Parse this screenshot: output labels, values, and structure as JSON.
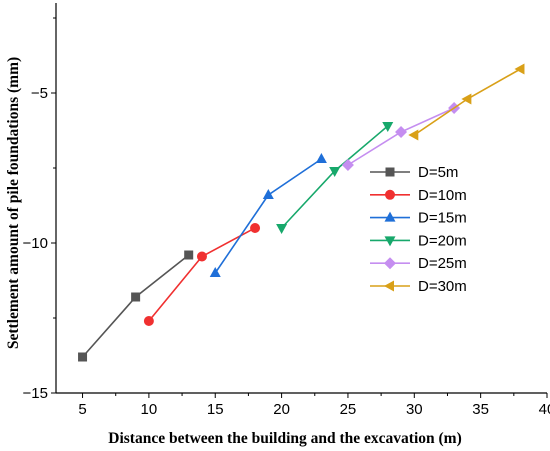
{
  "chart_data": {
    "type": "line",
    "title": "",
    "xlabel": "Distance between the building and the excavation  (m)",
    "ylabel": "Settlement amount of pile foundations (mm)",
    "xlim": [
      3,
      40
    ],
    "ylim": [
      -15,
      -2
    ],
    "xticks": [
      5,
      10,
      15,
      20,
      25,
      30,
      35,
      40
    ],
    "xtick_labels": [
      "5",
      "10",
      "15",
      "20",
      "25",
      "30",
      "35",
      "40"
    ],
    "yticks": [
      -15,
      -10,
      -5
    ],
    "ytick_labels": [
      "−15",
      "−10",
      "−5"
    ],
    "grid": false,
    "legend_position": "right",
    "series": [
      {
        "name": "D=5m",
        "color": "#555555",
        "marker": "square",
        "x": [
          5,
          9,
          13
        ],
        "y": [
          -13.8,
          -11.8,
          -10.4
        ]
      },
      {
        "name": "D=10m",
        "color": "#f03030",
        "marker": "circle",
        "x": [
          10,
          14,
          18
        ],
        "y": [
          -12.6,
          -10.45,
          -9.5
        ]
      },
      {
        "name": "D=15m",
        "color": "#1f6fd8",
        "marker": "triangle-up",
        "x": [
          15,
          19,
          23
        ],
        "y": [
          -11.0,
          -8.4,
          -7.2
        ]
      },
      {
        "name": "D=20m",
        "color": "#17a86b",
        "marker": "triangle-down",
        "x": [
          20,
          24,
          28
        ],
        "y": [
          -9.5,
          -7.6,
          -6.1
        ]
      },
      {
        "name": "D=25m",
        "color": "#c58ef0",
        "marker": "diamond",
        "x": [
          25,
          29,
          33
        ],
        "y": [
          -7.4,
          -6.3,
          -5.5
        ]
      },
      {
        "name": "D=30m",
        "color": "#d9a018",
        "marker": "triangle-left",
        "x": [
          30,
          34,
          38
        ],
        "y": [
          -6.4,
          -5.2,
          -4.2
        ]
      }
    ]
  }
}
